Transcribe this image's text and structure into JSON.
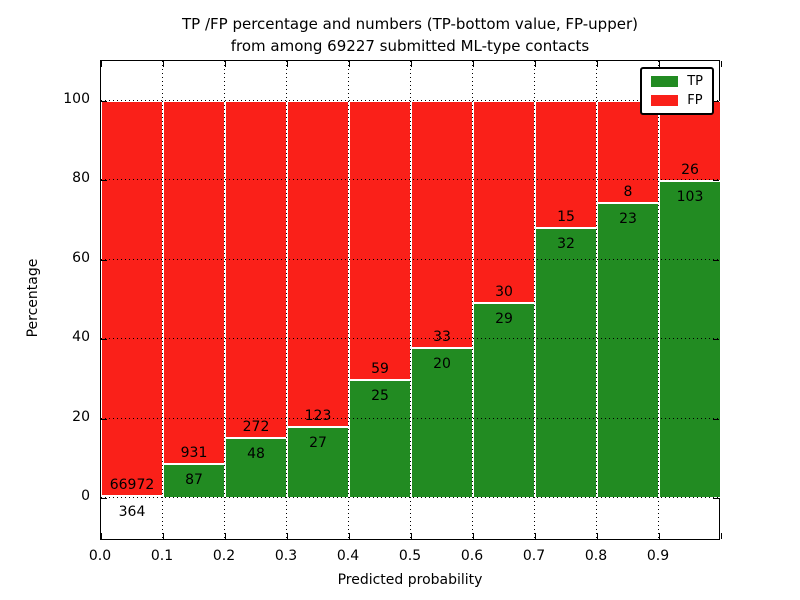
{
  "title": {
    "line1": "TP /FP percentage and numbers (TP-bottom value, FP-upper)",
    "line2": "from among 69227 submitted ML-type contacts"
  },
  "axes": {
    "xlabel": "Predicted probability",
    "ylabel": "Percentage",
    "x_tick_labels": [
      "0.0",
      "0.1",
      "0.2",
      "0.3",
      "0.4",
      "0.5",
      "0.6",
      "0.7",
      "0.8",
      "0.9"
    ],
    "y_tick_labels": [
      "0",
      "20",
      "40",
      "60",
      "80",
      "100"
    ],
    "y_tick_values": [
      0,
      20,
      40,
      60,
      80,
      100
    ]
  },
  "legend": {
    "position": "upper right",
    "items": [
      {
        "label": "TP",
        "color": "#228b22"
      },
      {
        "label": "FP",
        "color": "#fa2019"
      }
    ]
  },
  "colors": {
    "tp_green": "#228b22",
    "fp_red": "#fa2019",
    "grid": "#000000",
    "bar_edge": "#ffffff"
  },
  "chart_data": {
    "type": "bar",
    "subtype": "stacked_100_percent",
    "title": "TP /FP percentage and numbers (TP-bottom value, FP-upper) from among 69227 submitted ML-type contacts",
    "xlabel": "Predicted probability",
    "ylabel": "Percentage",
    "total_contacts": 69227,
    "bin_width": 0.1,
    "bin_starts": [
      0.0,
      0.1,
      0.2,
      0.3,
      0.4,
      0.5,
      0.6,
      0.7,
      0.8,
      0.9
    ],
    "series": [
      {
        "name": "TP",
        "color": "#228b22",
        "counts": [
          364,
          87,
          48,
          27,
          25,
          20,
          29,
          32,
          23,
          103
        ]
      },
      {
        "name": "FP",
        "color": "#fa2019",
        "counts": [
          66972,
          931,
          272,
          123,
          59,
          33,
          30,
          15,
          8,
          26
        ]
      }
    ],
    "tp_percent": [
      0.54,
      8.55,
      15.0,
      18.0,
      29.76,
      37.74,
      49.15,
      68.09,
      74.19,
      79.84
    ],
    "xlim": [
      0.0,
      1.0
    ],
    "ylim_ticks": [
      0,
      20,
      40,
      60,
      80,
      100
    ],
    "grid": "dotted, both axes",
    "legend_position": "upper right",
    "note": "labels inside bars: FP count above TP/FP boundary, TP count below"
  }
}
